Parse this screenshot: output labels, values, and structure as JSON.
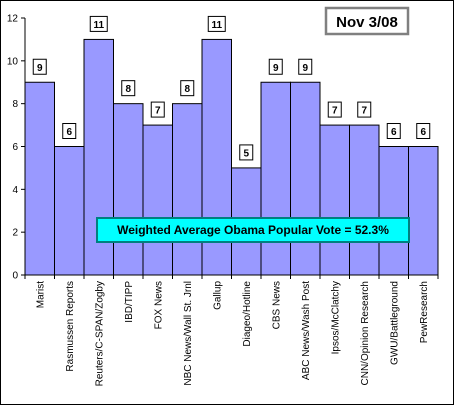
{
  "chart_data": {
    "type": "bar",
    "categories": [
      "Marist",
      "Rasmussen Reports",
      "Reuters/C-SPAN/Zogby",
      "IBD/TIPP",
      "FOX News",
      "NBC News/Wall St. Jrnl",
      "Gallup",
      "Diageo/Hotline",
      "CBS News",
      "ABC News/Wash Post",
      "Ipsos/McClatchy",
      "CNN/Opinion Research",
      "GWU/Battleground",
      "PewResearch"
    ],
    "values": [
      9,
      6,
      11,
      8,
      7,
      8,
      11,
      5,
      9,
      9,
      7,
      7,
      6,
      6
    ],
    "data_labels": [
      "9",
      "6",
      "11",
      "8",
      "7",
      "8",
      "11",
      "5",
      "9",
      "9",
      "7",
      "7",
      "6",
      "6"
    ],
    "yticks": [
      "0",
      "2",
      "4",
      "6",
      "8",
      "10",
      "12"
    ],
    "ylim": [
      0,
      12
    ],
    "title": "",
    "xlabel": "",
    "ylabel": "",
    "grid": false,
    "date_box": "Nov 3/08",
    "annotation": "Weighted Average Obama Popular Vote = 52.3%",
    "colors": {
      "bar_fill": "#9999ff",
      "bar_stroke": "#000000",
      "annotation_fill": "#00ffff",
      "annotation_border": "#008080",
      "date_border": "#808080",
      "frame": "#000000"
    }
  }
}
